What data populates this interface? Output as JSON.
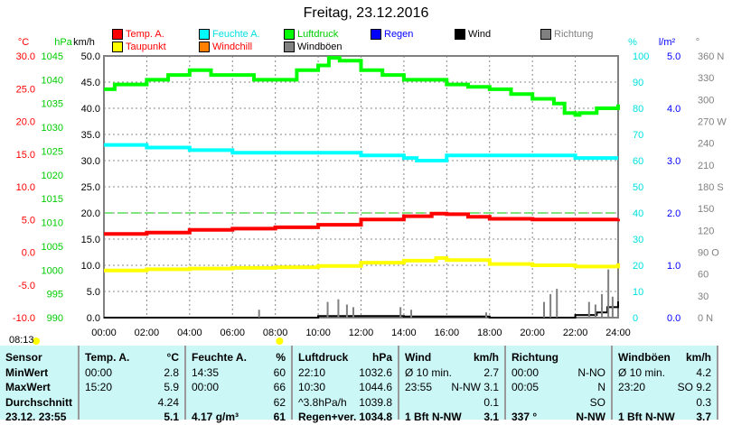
{
  "title": "Freitag, 23.12.2016",
  "legend": [
    {
      "label": "Temp. A.",
      "color": "#ff0000",
      "text": "#ff0000"
    },
    {
      "label": "Feuchte A.",
      "color": "#00ffff",
      "text": "#00e0e0"
    },
    {
      "label": "Luftdruck",
      "color": "#00ff00",
      "text": "#00cc00"
    },
    {
      "label": "Regen",
      "color": "#0000ff",
      "text": "#0000ff"
    },
    {
      "label": "Wind",
      "color": "#000000",
      "text": "#000000"
    },
    {
      "label": "Richtung",
      "color": "#808080",
      "text": "#808080"
    },
    {
      "label": "Taupunkt",
      "color": "#ffff00",
      "text": "#ff0000"
    },
    {
      "label": "Windchill",
      "color": "#ff8000",
      "text": "#ff0000"
    },
    {
      "label": "Windböen",
      "color": "#808080",
      "text": "#000000"
    }
  ],
  "sunrise": "08:13",
  "chart_data": {
    "type": "line",
    "title": "Freitag, 23.12.2016",
    "xlabel": "",
    "x_ticks": [
      "00:00",
      "02:00",
      "04:00",
      "06:00",
      "08:00",
      "10:00",
      "12:00",
      "14:00",
      "16:00",
      "18:00",
      "20:00",
      "22:00",
      "24:00"
    ],
    "xlim": [
      0,
      24
    ],
    "axes": {
      "temp": {
        "unit": "°C",
        "range": [
          -10,
          30
        ],
        "ticks": [
          "30.0",
          "25.0",
          "20.0",
          "15.0",
          "10.0",
          "5.0",
          "0.0",
          "-5.0",
          "-10.0"
        ]
      },
      "pressure": {
        "unit": "hPa",
        "range": [
          990,
          1045
        ],
        "ticks": [
          "1045",
          "1040",
          "1035",
          "1030",
          "1025",
          "1020",
          "1015",
          "1010",
          "1005",
          "1000",
          "995",
          "990"
        ]
      },
      "wind": {
        "unit": "km/h",
        "range": [
          0,
          50
        ],
        "ticks": [
          "50.0",
          "45.0",
          "40.0",
          "35.0",
          "30.0",
          "25.0",
          "20.0",
          "15.0",
          "10.0",
          "5.0",
          "0.0"
        ]
      },
      "humidity": {
        "unit": "%",
        "range": [
          0,
          100
        ],
        "ticks": [
          "100",
          "90",
          "80",
          "70",
          "60",
          "50",
          "40",
          "30",
          "20",
          "10",
          "0"
        ]
      },
      "rain": {
        "unit": "l/m²",
        "range": [
          0,
          5
        ],
        "ticks": [
          "5.0",
          "4.0",
          "3.0",
          "2.0",
          "1.0",
          "0.0"
        ]
      },
      "direction": {
        "unit": "°",
        "range": [
          0,
          360
        ],
        "ticks": [
          "360 N",
          "330",
          "300",
          "270 W",
          "240",
          "210",
          "180 S",
          "150",
          "120",
          "90 O",
          "60",
          "30",
          "0 N"
        ]
      }
    },
    "series": [
      {
        "name": "Luftdruck",
        "axis": "pressure",
        "color": "#00ff00",
        "x": [
          0,
          0.5,
          1,
          2,
          3,
          4,
          5,
          6,
          7,
          8,
          9,
          10,
          10.5,
          11,
          12,
          13,
          14,
          15,
          16,
          17,
          18,
          19,
          20,
          21,
          21.5,
          22,
          22.2,
          23,
          24
        ],
        "y": [
          1038,
          1039,
          1039,
          1040,
          1041,
          1042,
          1041,
          1041,
          1040,
          1040,
          1042,
          1043,
          1044.6,
          1044,
          1042,
          1041,
          1040,
          1040,
          1039,
          1038.5,
          1038,
          1037,
          1036,
          1035,
          1033,
          1032.6,
          1033,
          1034,
          1034.8
        ]
      },
      {
        "name": "Feuchte A.",
        "axis": "humidity",
        "color": "#00ffff",
        "x": [
          0,
          2,
          4,
          6,
          8,
          10,
          12,
          14,
          14.6,
          16,
          18,
          20,
          22,
          24
        ],
        "y": [
          66,
          65,
          64,
          63,
          63,
          63,
          62,
          61,
          60,
          62,
          62,
          62,
          61,
          61
        ]
      },
      {
        "name": "Temp. A.",
        "axis": "temp",
        "color": "#ff0000",
        "x": [
          0,
          2,
          4,
          6,
          8,
          10,
          12,
          14,
          15.3,
          16,
          17,
          18,
          20,
          22,
          24
        ],
        "y": [
          2.8,
          3.0,
          3.4,
          3.6,
          3.8,
          4.2,
          5.0,
          5.5,
          5.9,
          5.8,
          5.4,
          5.1,
          5.0,
          5.0,
          5.1
        ]
      },
      {
        "name": "Taupunkt",
        "axis": "temp",
        "color": "#ffff00",
        "x": [
          0,
          2,
          4,
          6,
          8,
          10,
          12,
          14,
          15.5,
          16,
          18,
          20,
          22,
          24
        ],
        "y": [
          -2.8,
          -2.6,
          -2.5,
          -2.4,
          -2.3,
          -2.1,
          -1.6,
          -1.3,
          -0.9,
          -1.2,
          -1.8,
          -2,
          -2.2,
          -1.7
        ]
      },
      {
        "name": "Wind",
        "axis": "wind",
        "color": "#000000",
        "x": [
          0,
          2,
          4,
          6,
          8,
          10,
          12,
          14,
          16,
          18,
          20,
          22,
          23,
          23.5,
          24
        ],
        "y": [
          0,
          0,
          0,
          0,
          0,
          0.3,
          0.3,
          0.2,
          0.2,
          0,
          0,
          0.5,
          1,
          2,
          3.1
        ]
      },
      {
        "name": "Windböen",
        "axis": "wind",
        "color": "#808080",
        "type": "bar",
        "x": [
          7.2,
          10.4,
          10.9,
          11.3,
          11.6,
          13.8,
          14.3,
          17.8,
          20.5,
          20.8,
          21.1,
          22.6,
          22.9,
          23.2,
          23.5,
          23.7
        ],
        "y": [
          1.5,
          3,
          3.5,
          2.5,
          2,
          2,
          1.5,
          1,
          3,
          4.5,
          5.5,
          3,
          2.5,
          4.5,
          9.2,
          4
        ]
      }
    ]
  },
  "table": [
    {
      "header": "Sensor",
      "unit": "",
      "rows": [
        [
          "MinWert",
          ""
        ],
        [
          "MaxWert",
          ""
        ],
        [
          "Durchschnitt",
          ""
        ],
        [
          "23.12. 23:55",
          ""
        ]
      ]
    },
    {
      "header": "Temp. A.",
      "unit": "°C",
      "rows": [
        [
          "00:00",
          "2.8"
        ],
        [
          "15:20",
          "5.9"
        ],
        [
          "",
          "4.24"
        ],
        [
          "",
          "5.1"
        ]
      ]
    },
    {
      "header": "Feuchte A.",
      "unit": "%",
      "rows": [
        [
          "14:35",
          "60"
        ],
        [
          "00:00",
          "66"
        ],
        [
          "",
          "62"
        ],
        [
          "4.17 g/m³",
          "61"
        ]
      ]
    },
    {
      "header": "Luftdruck",
      "unit": "hPa",
      "rows": [
        [
          "22:10",
          "1032.6"
        ],
        [
          "10:30",
          "1044.6"
        ],
        [
          "^3.8hPa/h",
          "1039.8"
        ],
        [
          "Regen+ver.",
          "1034.8"
        ]
      ]
    },
    {
      "header": "Wind",
      "unit": "km/h",
      "rows": [
        [
          "Ø 10 min.",
          "2.7"
        ],
        [
          "23:55",
          "N-NW 3.1"
        ],
        [
          "",
          "0.1"
        ],
        [
          "1 Bft N-NW",
          "3.1"
        ]
      ]
    },
    {
      "header": "Richtung",
      "unit": "",
      "rows": [
        [
          "00:00",
          "N-NO"
        ],
        [
          "00:05",
          "N"
        ],
        [
          "",
          "SO"
        ],
        [
          "337 °",
          "N-NW"
        ]
      ]
    },
    {
      "header": "Windböen",
      "unit": "km/h",
      "rows": [
        [
          "Ø 10 min.",
          "4.2"
        ],
        [
          "23:20",
          "SO 9.2"
        ],
        [
          "",
          "0.3"
        ],
        [
          "1 Bft N-NW",
          "3.7"
        ]
      ]
    }
  ]
}
